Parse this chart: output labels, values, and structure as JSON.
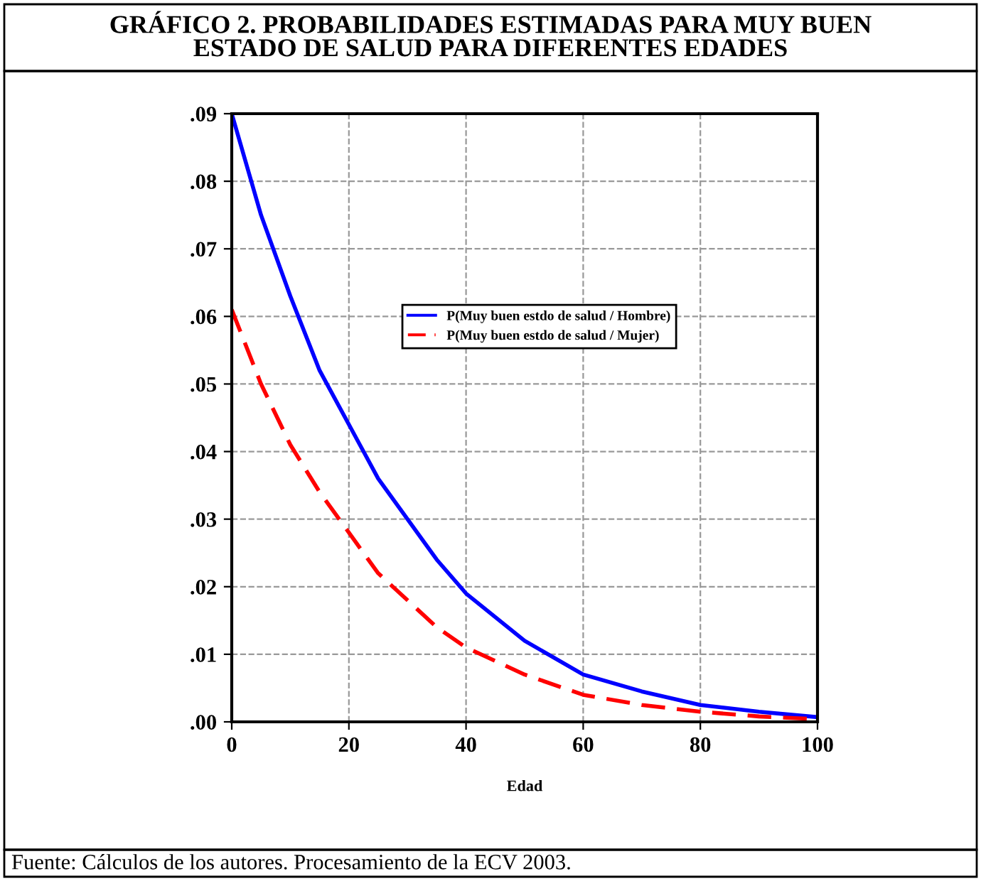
{
  "chart_data": {
    "type": "line",
    "title": "GRÁFICO 2. PROBABILIDADES ESTIMADAS PARA MUY BUEN\nESTADO DE SALUD PARA DIFERENTES EDADES",
    "xlabel": "Edad",
    "x": [
      0,
      5,
      10,
      15,
      20,
      25,
      30,
      35,
      40,
      50,
      60,
      70,
      80,
      90,
      100
    ],
    "series": [
      {
        "name": "P(Muy buen estdo de salud / Hombre)",
        "color": "#0000ff",
        "line_style": "solid",
        "values": [
          0.09,
          0.075,
          0.063,
          0.052,
          0.044,
          0.036,
          0.03,
          0.024,
          0.019,
          0.012,
          0.007,
          0.0045,
          0.0025,
          0.0015,
          0.0007
        ]
      },
      {
        "name": "P(Muy buen estdo de salud / Mujer)",
        "color": "#ff0000",
        "line_style": "dashed",
        "values": [
          0.061,
          0.05,
          0.041,
          0.034,
          0.028,
          0.022,
          0.018,
          0.014,
          0.011,
          0.007,
          0.004,
          0.0025,
          0.0015,
          0.0008,
          0.0004
        ]
      }
    ],
    "xlim": [
      0,
      100
    ],
    "xticks": [
      0,
      20,
      40,
      60,
      80,
      100
    ],
    "ylim": [
      0,
      0.09
    ],
    "yticks": [
      {
        "value": 0,
        "label": ".00"
      },
      {
        "value": 0.01,
        "label": ".01"
      },
      {
        "value": 0.02,
        "label": ".02"
      },
      {
        "value": 0.03,
        "label": ".03"
      },
      {
        "value": 0.04,
        "label": ".04"
      },
      {
        "value": 0.05,
        "label": ".05"
      },
      {
        "value": 0.06,
        "label": ".06"
      },
      {
        "value": 0.07,
        "label": ".07"
      },
      {
        "value": 0.08,
        "label": ".08"
      },
      {
        "value": 0.09,
        "label": ".09"
      }
    ],
    "grid": true,
    "legend": "center",
    "annotations": [
      "Fuente: Cálculos de los autores. Procesamiento de la ECV 2003."
    ]
  }
}
